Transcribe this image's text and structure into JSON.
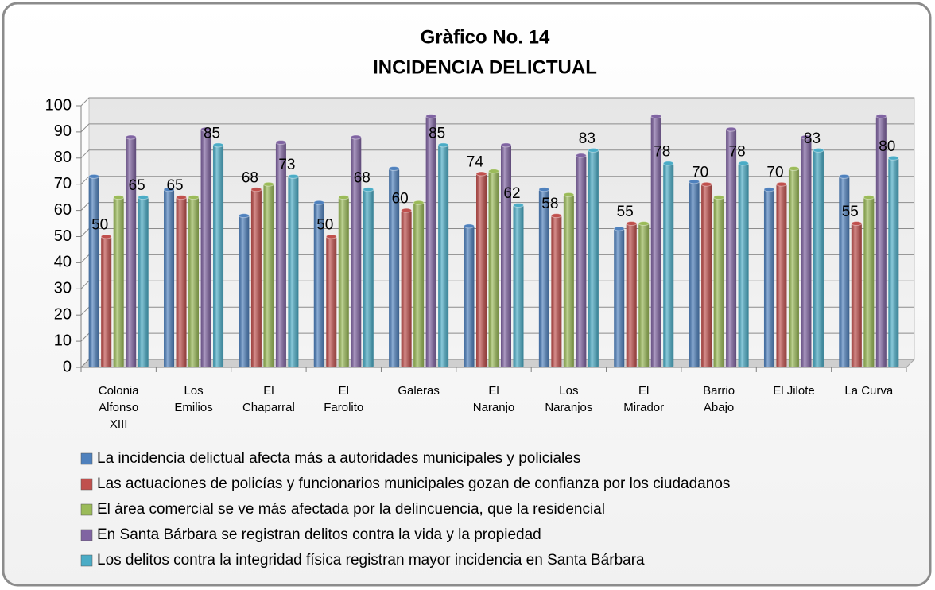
{
  "chart_data": {
    "type": "bar",
    "title": "Gràfico No. 14",
    "subtitle": "INCIDENCIA DELICTUAL",
    "categories": [
      [
        "Colonia",
        "Alfonso",
        "XIII"
      ],
      [
        "Los",
        "Emilios"
      ],
      [
        "El",
        "Chaparral"
      ],
      [
        "El",
        "Farolito"
      ],
      [
        "Galeras"
      ],
      [
        "El",
        "Naranjo"
      ],
      [
        "Los",
        "Naranjos"
      ],
      [
        "El",
        "Mirador"
      ],
      [
        "Barrio",
        "Abajo"
      ],
      [
        "El Jilote"
      ],
      [
        "La Curva"
      ]
    ],
    "series": [
      {
        "name": "La incidencia delictual afecta más a autoridades municipales y policiales",
        "color": "#4f81bd",
        "data_labels": false,
        "values": [
          73,
          68,
          58,
          63,
          76,
          54,
          68,
          53,
          71,
          68,
          73
        ]
      },
      {
        "name": "Las actuaciones de policías y funcionarios municipales gozan de confianza por los ciudadanos",
        "color": "#c0504d",
        "data_labels": true,
        "values": [
          50,
          65,
          68,
          50,
          60,
          74,
          58,
          55,
          70,
          70,
          55
        ]
      },
      {
        "name": "El área comercial se ve más afectada por la delincuencia, que la residencial",
        "color": "#9bbb59",
        "data_labels": false,
        "values": [
          65,
          65,
          70,
          65,
          63,
          75,
          66,
          55,
          65,
          76,
          65
        ]
      },
      {
        "name": "En Santa Bárbara se registran delitos contra la vida y la propiedad",
        "color": "#8064a2",
        "data_labels": false,
        "values": [
          88,
          91,
          86,
          88,
          96,
          85,
          81,
          96,
          91,
          88,
          96
        ]
      },
      {
        "name": "Los delitos contra la integridad física registran mayor incidencia en Santa Bárbara",
        "color": "#4bacc6",
        "data_labels": true,
        "values": [
          65,
          85,
          73,
          68,
          85,
          62,
          83,
          78,
          78,
          83,
          80
        ]
      }
    ],
    "ylim": [
      0,
      100
    ],
    "yticks": [
      0,
      10,
      20,
      30,
      40,
      50,
      60,
      70,
      80,
      90,
      100
    ],
    "grid": true
  }
}
